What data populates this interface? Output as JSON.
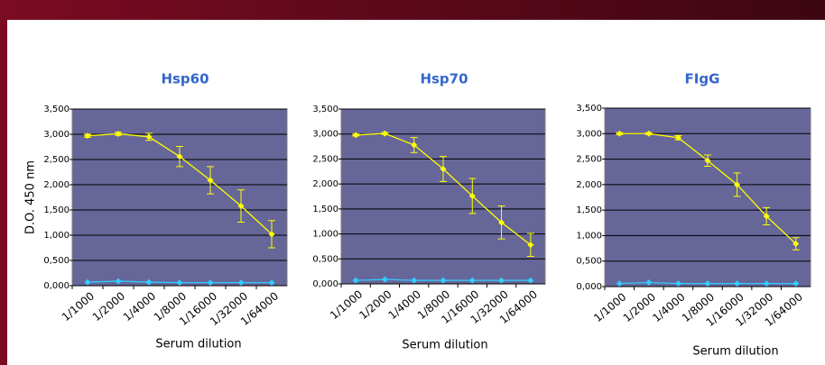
{
  "chart_data": [
    {
      "type": "line",
      "title": "Hsp60",
      "ylabel": "D.O. 450 nm",
      "xlabel": "Serum dilution",
      "categories": [
        "1/1000",
        "1/2000",
        "1/4000",
        "1/8000",
        "1/16000",
        "1/32000",
        "1/64000"
      ],
      "ylim": [
        0,
        3500
      ],
      "yticks": [
        {
          "value": 0,
          "label": "0,000"
        },
        {
          "value": 500,
          "label": "0,500"
        },
        {
          "value": 1000,
          "label": "1,000"
        },
        {
          "value": 1500,
          "label": "1,500"
        },
        {
          "value": 2000,
          "label": "2,000"
        },
        {
          "value": 2500,
          "label": "2,500"
        },
        {
          "value": 3000,
          "label": "3,000"
        },
        {
          "value": 3500,
          "label": "3,500"
        }
      ],
      "grid": true,
      "background": "#666699",
      "series": [
        {
          "color": "#ffff00",
          "values": [
            2970,
            3010,
            2950,
            2560,
            2090,
            1580,
            1020
          ],
          "errors": [
            30,
            30,
            70,
            200,
            270,
            320,
            270
          ]
        },
        {
          "color": "#33ccff",
          "values": [
            70,
            90,
            70,
            60,
            60,
            60,
            60
          ]
        }
      ]
    },
    {
      "type": "line",
      "title": "Hsp70",
      "xlabel": "Serum dilution",
      "categories": [
        "1/1000",
        "1/2000",
        "1/4000",
        "1/8000",
        "1/16000",
        "1/32000",
        "1/64000"
      ],
      "ylim": [
        0,
        3500
      ],
      "yticks": [
        {
          "value": 0,
          "label": "0,000"
        },
        {
          "value": 500,
          "label": "0,500"
        },
        {
          "value": 1000,
          "label": "1,000"
        },
        {
          "value": 1500,
          "label": "1,500"
        },
        {
          "value": 2000,
          "label": "2,000"
        },
        {
          "value": 2500,
          "label": "2,500"
        },
        {
          "value": 3000,
          "label": "3,000"
        },
        {
          "value": 3500,
          "label": "3,500"
        }
      ],
      "grid": true,
      "background": "#666699",
      "series": [
        {
          "color": "#ffff00",
          "values": [
            2980,
            3010,
            2780,
            2300,
            1760,
            1230,
            780
          ],
          "errors": [
            20,
            20,
            150,
            250,
            350,
            330,
            230
          ]
        },
        {
          "color": "#33ccff",
          "values": [
            70,
            90,
            70,
            70,
            70,
            70,
            70
          ]
        }
      ]
    },
    {
      "type": "line",
      "title": "FIgG",
      "xlabel": "Serum dilution",
      "categories": [
        "1/1000",
        "1/2000",
        "1/4000",
        "1/8000",
        "1/16000",
        "1/32000",
        "1/64000"
      ],
      "ylim": [
        0,
        3500
      ],
      "yticks": [
        {
          "value": 0,
          "label": "0,000"
        },
        {
          "value": 500,
          "label": "0,500"
        },
        {
          "value": 1000,
          "label": "1,000"
        },
        {
          "value": 1500,
          "label": "1,500"
        },
        {
          "value": 2000,
          "label": "2,000"
        },
        {
          "value": 2500,
          "label": "2,500"
        },
        {
          "value": 3000,
          "label": "3,000"
        },
        {
          "value": 3500,
          "label": "3,500"
        }
      ],
      "grid": true,
      "background": "#666699",
      "series": [
        {
          "color": "#ffff00",
          "values": [
            3000,
            3000,
            2920,
            2470,
            2000,
            1380,
            840
          ],
          "errors": [
            20,
            20,
            40,
            110,
            230,
            170,
            120
          ]
        },
        {
          "color": "#33ccff",
          "values": [
            60,
            80,
            60,
            60,
            60,
            60,
            60
          ]
        }
      ]
    }
  ]
}
